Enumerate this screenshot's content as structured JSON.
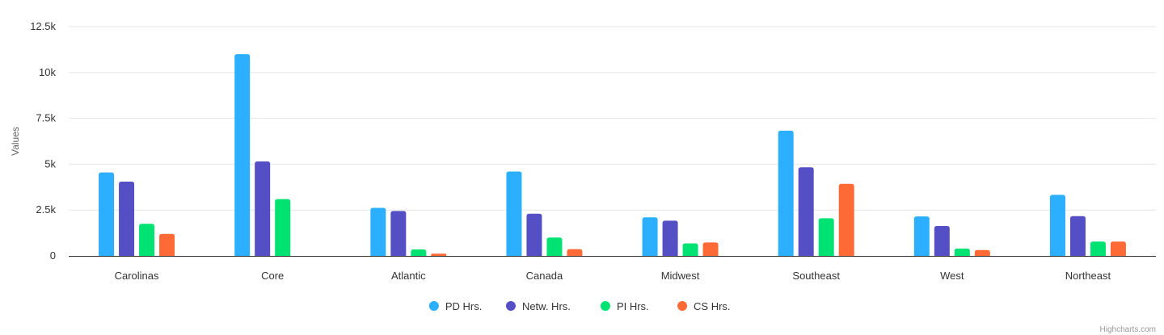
{
  "chart_data": {
    "type": "bar",
    "categories": [
      "Carolinas",
      "Core",
      "Atlantic",
      "Canada",
      "Midwest",
      "Southeast",
      "West",
      "Northeast"
    ],
    "series": [
      {
        "name": "PD Hrs.",
        "color": "#2caffe",
        "values": [
          4550,
          11000,
          2620,
          4600,
          2100,
          6830,
          2150,
          3330
        ]
      },
      {
        "name": "Netw. Hrs.",
        "color": "#544fc5",
        "values": [
          4050,
          5150,
          2450,
          2300,
          1920,
          4830,
          1630,
          2170
        ]
      },
      {
        "name": "PI Hrs.",
        "color": "#00e272",
        "values": [
          1750,
          3100,
          350,
          1000,
          680,
          2050,
          400,
          780
        ]
      },
      {
        "name": "CS Hrs.",
        "color": "#fe6a35",
        "values": [
          1200,
          0,
          120,
          370,
          730,
          3930,
          320,
          780
        ]
      }
    ],
    "title": "",
    "xlabel": "",
    "ylabel": "Values",
    "ylim": [
      0,
      12500
    ],
    "yticks": [
      0,
      2500,
      5000,
      7500,
      10000,
      12500
    ],
    "ytick_labels": [
      "0",
      "2.5k",
      "5k",
      "7.5k",
      "10k",
      "12.5k"
    ],
    "grid": true,
    "legend": "bottom-center"
  },
  "credits": "Highcharts.com"
}
